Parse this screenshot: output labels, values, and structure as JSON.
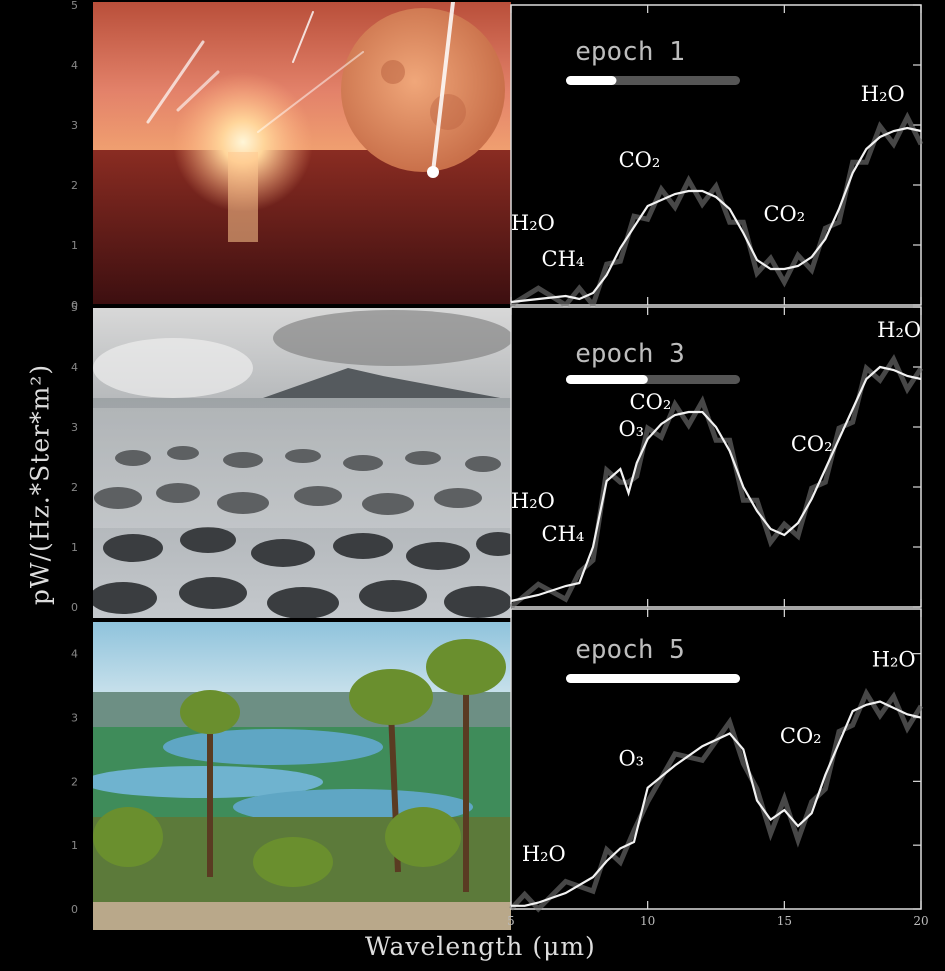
{
  "yaxis_label": "pW/(Hz.*Ster*m²)",
  "xaxis_label": "Wavelength (μm)",
  "chart_data": [
    {
      "type": "line",
      "title": "epoch 1",
      "progress": 0.29,
      "x_ticks": [
        5,
        10,
        15,
        20
      ],
      "y_ticks": [
        0,
        1,
        2,
        3,
        4,
        5
      ],
      "xlim": [
        5,
        20
      ],
      "ylim": [
        0,
        5
      ],
      "annotations": [
        {
          "text": "H₂O",
          "x": 5.8,
          "y": 1.25
        },
        {
          "text": "CH₄",
          "x": 6.9,
          "y": 0.65
        },
        {
          "text": "CO₂",
          "x": 9.7,
          "y": 2.3
        },
        {
          "text": "CO₂",
          "x": 15.0,
          "y": 1.4
        },
        {
          "text": "H₂O",
          "x": 18.6,
          "y": 3.4
        }
      ],
      "series": [
        {
          "x": [
            5,
            6,
            7,
            7.5,
            8,
            8.5,
            9,
            9.5,
            10,
            10.5,
            11,
            11.5,
            12,
            12.5,
            13,
            13.5,
            14,
            14.5,
            15,
            15.5,
            16,
            16.5,
            17,
            17.5,
            18,
            18.5,
            19,
            19.5,
            20
          ],
          "values": [
            0.05,
            0.1,
            0.15,
            0.1,
            0.2,
            0.5,
            0.95,
            1.3,
            1.65,
            1.75,
            1.85,
            1.9,
            1.9,
            1.8,
            1.6,
            1.2,
            0.75,
            0.6,
            0.6,
            0.65,
            0.8,
            1.1,
            1.6,
            2.2,
            2.6,
            2.8,
            2.9,
            2.95,
            2.9
          ]
        }
      ]
    },
    {
      "type": "line",
      "title": "epoch 3",
      "progress": 0.47,
      "x_ticks": [
        5,
        10,
        15,
        20
      ],
      "y_ticks": [
        0,
        1,
        2,
        3,
        4,
        5
      ],
      "xlim": [
        5,
        20
      ],
      "ylim": [
        0,
        5
      ],
      "annotations": [
        {
          "text": "H₂O",
          "x": 5.8,
          "y": 1.65
        },
        {
          "text": "CH₄",
          "x": 6.9,
          "y": 1.1
        },
        {
          "text": "CO₂",
          "x": 10.1,
          "y": 3.3
        },
        {
          "text": "O₃",
          "x": 9.4,
          "y": 2.85
        },
        {
          "text": "CO₂",
          "x": 16.0,
          "y": 2.6
        },
        {
          "text": "H₂O",
          "x": 19.2,
          "y": 4.5
        }
      ],
      "series": [
        {
          "x": [
            5,
            6,
            7,
            7.5,
            8,
            8.5,
            9,
            9.3,
            9.6,
            10,
            10.5,
            11,
            11.5,
            12,
            12.5,
            13,
            13.5,
            14,
            14.5,
            15,
            15.5,
            16,
            16.5,
            17,
            17.5,
            18,
            18.5,
            19,
            19.5,
            20
          ],
          "values": [
            0.1,
            0.2,
            0.35,
            0.4,
            1.0,
            2.1,
            2.3,
            1.9,
            2.4,
            2.8,
            3.05,
            3.2,
            3.25,
            3.25,
            3.0,
            2.6,
            2.0,
            1.6,
            1.3,
            1.2,
            1.4,
            1.8,
            2.3,
            2.8,
            3.3,
            3.8,
            4.0,
            3.95,
            3.85,
            3.8
          ]
        }
      ]
    },
    {
      "type": "line",
      "title": "epoch 5",
      "progress": 1.0,
      "x_ticks": [
        5,
        10,
        15,
        20
      ],
      "x_tick_labels": [
        "5",
        "10",
        "15",
        "20"
      ],
      "y_ticks": [
        0,
        1,
        2,
        3,
        4
      ],
      "xlim": [
        5,
        20
      ],
      "ylim": [
        0,
        4.7
      ],
      "annotations": [
        {
          "text": "H₂O",
          "x": 6.2,
          "y": 0.75
        },
        {
          "text": "O₃",
          "x": 9.4,
          "y": 2.25
        },
        {
          "text": "CO₂",
          "x": 15.6,
          "y": 2.6
        },
        {
          "text": "H₂O",
          "x": 19.0,
          "y": 3.8
        }
      ],
      "series": [
        {
          "x": [
            5,
            5.5,
            6,
            7,
            8,
            8.5,
            9,
            9.5,
            10,
            11,
            12,
            13,
            13.5,
            14,
            14.5,
            15,
            15.5,
            16,
            16.5,
            17,
            17.5,
            18,
            18.5,
            19,
            19.5,
            20
          ],
          "values": [
            0.05,
            0.05,
            0.1,
            0.25,
            0.5,
            0.75,
            0.95,
            1.05,
            1.9,
            2.25,
            2.55,
            2.75,
            2.5,
            1.7,
            1.4,
            1.55,
            1.3,
            1.5,
            2.1,
            2.6,
            3.1,
            3.2,
            3.25,
            3.15,
            3.05,
            3.0
          ]
        }
      ]
    }
  ]
}
